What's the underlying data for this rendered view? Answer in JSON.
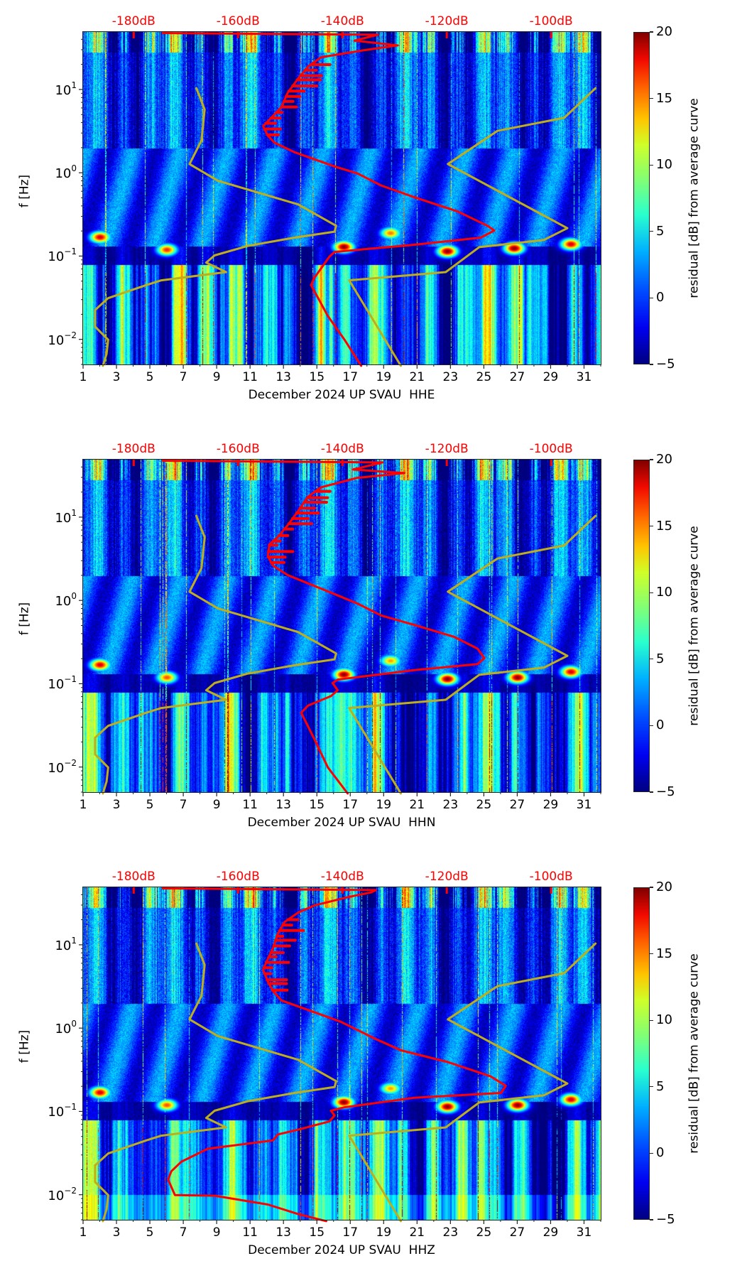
{
  "chart_data": [
    {
      "type": "heatmap",
      "channel": "HHE",
      "xlabel": "December 2024 UP SVAU  HHE",
      "ylabel": "f [Hz]",
      "x_ticks": [
        "1",
        "3",
        "5",
        "7",
        "9",
        "11",
        "13",
        "15",
        "17",
        "19",
        "21",
        "23",
        "25",
        "27",
        "29",
        "31"
      ],
      "xlim": [
        1,
        32
      ],
      "y_scale": "log",
      "ylim": [
        0.005,
        49
      ],
      "y_ticks": [
        {
          "base": "10",
          "exp": "1",
          "value": 10
        },
        {
          "base": "10",
          "exp": "0",
          "value": 1
        },
        {
          "base": "10",
          "exp": "−1",
          "value": 0.1
        },
        {
          "base": "10",
          "exp": "−2",
          "value": 0.01
        }
      ],
      "top_axis": {
        "labels": [
          "-180dB",
          "-160dB",
          "-140dB",
          "-120dB",
          "-100dB"
        ],
        "values": [
          -180,
          -160,
          -140,
          -120,
          -100
        ],
        "xlim": [
          -189.7,
          -90.5
        ]
      },
      "colorbar": {
        "label": "residual [dB] from average curve",
        "ticks": [
          "20",
          "15",
          "10",
          "5",
          "0",
          "−5"
        ],
        "tick_values": [
          20,
          15,
          10,
          5,
          0,
          -5
        ],
        "range": [
          -5,
          20
        ],
        "colormap": "jet"
      },
      "series": [
        {
          "name": "mean PSD",
          "color": "#ff0000",
          "db": [
            -174.4,
            -133.2,
            -137.7,
            -129.4,
            -135.8,
            -144.1,
            -146.6,
            -148.5,
            -150.5,
            -151.7,
            -154.3,
            -155.2,
            -154.3,
            -153.0,
            -149.2,
            -141.5,
            -137.1,
            -132.6,
            -126.2,
            -117.9,
            -112.2,
            -110.9,
            -113.5,
            -126.2,
            -141.5,
            -142.5,
            -145.4,
            -146.0,
            -142.8,
            -139.6,
            -136.4
          ],
          "log10_f": [
            1.677,
            1.657,
            1.586,
            1.529,
            1.472,
            1.387,
            1.273,
            1.13,
            0.959,
            0.788,
            0.617,
            0.56,
            0.446,
            0.361,
            0.247,
            0.076,
            -0.009,
            -0.152,
            -0.294,
            -0.465,
            -0.636,
            -0.693,
            -0.779,
            -0.864,
            -0.95,
            -1.007,
            -1.263,
            -1.348,
            -1.719,
            -2.004,
            -2.317
          ]
        },
        {
          "name": "low noise model",
          "color": "#bfae1c",
          "db": [
            -168.0,
            -166.4,
            -167.0,
            -169.3,
            -163.9,
            -148.5,
            -141.2,
            -141.5,
            -149.2,
            -158.1,
            -164.5,
            -166.1,
            -162.3,
            -174.7,
            -177.6,
            -184.9,
            -187.4,
            -187.4,
            -184.9,
            -185.2,
            -185.9
          ],
          "log10_f": [
            1.016,
            0.76,
            0.389,
            0.105,
            -0.095,
            -0.38,
            -0.636,
            -0.707,
            -0.779,
            -0.878,
            -0.992,
            -1.078,
            -1.192,
            -1.291,
            -1.348,
            -1.505,
            -1.648,
            -1.847,
            -2.004,
            -2.175,
            -2.317
          ]
        },
        {
          "name": "high noise model",
          "color": "#bfae1c",
          "db": [
            -91.5,
            -97.5,
            -110.3,
            -119.8,
            -96.9,
            -101.4,
            -113.8,
            -120.2,
            -138.7,
            -128.8
          ],
          "log10_f": [
            1.016,
            0.66,
            0.503,
            0.105,
            -0.665,
            -0.807,
            -0.893,
            -1.192,
            -1.291,
            -2.317
          ]
        }
      ],
      "heatmap_features": [
        {
          "day": 2.0,
          "f": 0.17,
          "residual": 18
        },
        {
          "day": 6.0,
          "f": 0.12,
          "residual": 16
        },
        {
          "day": 16.6,
          "f": 0.13,
          "residual": 20
        },
        {
          "day": 19.4,
          "f": 0.19,
          "residual": 14
        },
        {
          "day": 22.8,
          "f": 0.115,
          "residual": 20
        },
        {
          "day": 26.8,
          "f": 0.125,
          "residual": 20
        },
        {
          "day": 30.2,
          "f": 0.14,
          "residual": 18
        }
      ]
    },
    {
      "type": "heatmap",
      "channel": "HHN",
      "xlabel": "December 2024 UP SVAU  HHN",
      "ylabel": "f [Hz]",
      "x_ticks": [
        "1",
        "3",
        "5",
        "7",
        "9",
        "11",
        "13",
        "15",
        "17",
        "19",
        "21",
        "23",
        "25",
        "27",
        "29",
        "31"
      ],
      "xlim": [
        1,
        32
      ],
      "y_scale": "log",
      "ylim": [
        0.005,
        49
      ],
      "y_ticks": [
        {
          "base": "10",
          "exp": "1",
          "value": 10
        },
        {
          "base": "10",
          "exp": "0",
          "value": 1
        },
        {
          "base": "10",
          "exp": "−1",
          "value": 0.1
        },
        {
          "base": "10",
          "exp": "−2",
          "value": 0.01
        }
      ],
      "top_axis": {
        "labels": [
          "-180dB",
          "-160dB",
          "-140dB",
          "-120dB",
          "-100dB"
        ],
        "values": [
          -180,
          -160,
          -140,
          -120,
          -100
        ],
        "xlim": [
          -189.7,
          -90.5
        ]
      },
      "colorbar": {
        "label": "residual [dB] from average curve",
        "ticks": [
          "20",
          "15",
          "10",
          "5",
          "0",
          "−5"
        ],
        "tick_values": [
          20,
          15,
          10,
          5,
          0,
          -5
        ],
        "range": [
          -5,
          20
        ],
        "colormap": "jet"
      },
      "series": [
        {
          "name": "mean PSD",
          "color": "#ff0000",
          "db": [
            -174.4,
            -132.3,
            -138.0,
            -128.1,
            -137.1,
            -144.1,
            -146.6,
            -148.5,
            -150.5,
            -152.4,
            -154.0,
            -154.3,
            -153.3,
            -150.5,
            -141.5,
            -137.1,
            -132.6,
            -126.2,
            -118.6,
            -114.1,
            -112.8,
            -114.1,
            -126.2,
            -140.9,
            -141.9,
            -140.9,
            -142.2,
            -146.6,
            -147.9,
            -145.4,
            -142.8,
            -139.0
          ],
          "log10_f": [
            1.677,
            1.657,
            1.572,
            1.529,
            1.472,
            1.358,
            1.244,
            1.073,
            0.902,
            0.76,
            0.674,
            0.532,
            0.418,
            0.304,
            0.076,
            -0.038,
            -0.18,
            -0.294,
            -0.437,
            -0.579,
            -0.693,
            -0.764,
            -0.836,
            -0.95,
            -0.992,
            -1.078,
            -1.149,
            -1.263,
            -1.348,
            -1.662,
            -2.004,
            -2.317
          ]
        },
        {
          "name": "low noise model",
          "color": "#bfae1c",
          "db": [
            -168.0,
            -166.4,
            -167.0,
            -169.3,
            -163.9,
            -148.5,
            -141.2,
            -141.5,
            -149.2,
            -158.1,
            -164.5,
            -166.1,
            -162.3,
            -174.7,
            -177.6,
            -184.9,
            -187.4,
            -187.4,
            -184.9,
            -185.2,
            -185.9
          ],
          "log10_f": [
            1.016,
            0.76,
            0.389,
            0.105,
            -0.095,
            -0.38,
            -0.636,
            -0.707,
            -0.779,
            -0.878,
            -0.992,
            -1.078,
            -1.192,
            -1.291,
            -1.348,
            -1.505,
            -1.648,
            -1.847,
            -2.004,
            -2.175,
            -2.317
          ]
        },
        {
          "name": "high noise model",
          "color": "#bfae1c",
          "db": [
            -91.5,
            -97.5,
            -110.3,
            -119.8,
            -96.9,
            -101.4,
            -113.8,
            -120.2,
            -138.7,
            -128.8
          ],
          "log10_f": [
            1.016,
            0.66,
            0.503,
            0.105,
            -0.665,
            -0.807,
            -0.893,
            -1.192,
            -1.291,
            -2.317
          ]
        }
      ],
      "heatmap_features": [
        {
          "day": 2.0,
          "f": 0.17,
          "residual": 18
        },
        {
          "day": 6.0,
          "f": 0.12,
          "residual": 15
        },
        {
          "day": 16.6,
          "f": 0.13,
          "residual": 20
        },
        {
          "day": 19.4,
          "f": 0.19,
          "residual": 13
        },
        {
          "day": 22.8,
          "f": 0.115,
          "residual": 20
        },
        {
          "day": 27.0,
          "f": 0.12,
          "residual": 20
        },
        {
          "day": 30.2,
          "f": 0.14,
          "residual": 18
        }
      ]
    },
    {
      "type": "heatmap",
      "channel": "HHZ",
      "xlabel": "December 2024 UP SVAU  HHZ",
      "ylabel": "f [Hz]",
      "x_ticks": [
        "1",
        "3",
        "5",
        "7",
        "9",
        "11",
        "13",
        "15",
        "17",
        "19",
        "21",
        "23",
        "25",
        "27",
        "29",
        "31"
      ],
      "xlim": [
        1,
        32
      ],
      "y_scale": "log",
      "ylim": [
        0.005,
        49
      ],
      "y_ticks": [
        {
          "base": "10",
          "exp": "1",
          "value": 10
        },
        {
          "base": "10",
          "exp": "0",
          "value": 1
        },
        {
          "base": "10",
          "exp": "−1",
          "value": 0.1
        },
        {
          "base": "10",
          "exp": "−2",
          "value": 0.01
        }
      ],
      "top_axis": {
        "labels": [
          "-180dB",
          "-160dB",
          "-140dB",
          "-120dB",
          "-100dB"
        ],
        "values": [
          -180,
          -160,
          -140,
          -120,
          -100
        ],
        "xlim": [
          -189.7,
          -90.5
        ]
      },
      "colorbar": {
        "label": "residual [dB] from average curve",
        "ticks": [
          "20",
          "15",
          "10",
          "5",
          "0",
          "−5"
        ],
        "tick_values": [
          20,
          15,
          10,
          5,
          0,
          -5
        ],
        "range": [
          -5,
          20
        ],
        "colormap": "jet"
      },
      "series": [
        {
          "name": "mean PSD",
          "color": "#ff0000",
          "db": [
            -174.4,
            -133.6,
            -134.5,
            -139.0,
            -145.4,
            -148.5,
            -151.1,
            -152.4,
            -153.3,
            -154.6,
            -155.2,
            -154.3,
            -153.3,
            -151.7,
            -147.9,
            -140.3,
            -133.9,
            -128.8,
            -119.8,
            -111.6,
            -108.7,
            -109.6,
            -126.2,
            -139.6,
            -142.2,
            -141.5,
            -142.5,
            -148.5,
            -152.4,
            -153.3,
            -165.8,
            -170.9,
            -172.8,
            -173.4,
            -172.1,
            -164.5,
            -154.3,
            -148.5,
            -143.1
          ],
          "log10_f": [
            1.677,
            1.657,
            1.629,
            1.572,
            1.472,
            1.387,
            1.273,
            1.13,
            0.959,
            0.788,
            0.703,
            0.56,
            0.446,
            0.332,
            0.247,
            0.076,
            -0.123,
            -0.266,
            -0.408,
            -0.579,
            -0.693,
            -0.779,
            -0.836,
            -0.95,
            -0.992,
            -1.049,
            -1.121,
            -1.22,
            -1.277,
            -1.348,
            -1.448,
            -1.605,
            -1.719,
            -1.818,
            -2.004,
            -2.012,
            -2.118,
            -2.232,
            -2.317
          ]
        },
        {
          "name": "low noise model",
          "color": "#bfae1c",
          "db": [
            -168.0,
            -166.4,
            -167.0,
            -169.3,
            -163.9,
            -148.5,
            -141.2,
            -141.5,
            -149.2,
            -158.1,
            -164.5,
            -166.1,
            -162.3,
            -174.7,
            -177.6,
            -184.9,
            -187.4,
            -187.4,
            -184.9,
            -185.2,
            -185.9
          ],
          "log10_f": [
            1.016,
            0.76,
            0.389,
            0.105,
            -0.095,
            -0.38,
            -0.636,
            -0.707,
            -0.779,
            -0.878,
            -0.992,
            -1.078,
            -1.192,
            -1.291,
            -1.348,
            -1.505,
            -1.648,
            -1.847,
            -2.004,
            -2.175,
            -2.317
          ]
        },
        {
          "name": "high noise model",
          "color": "#bfae1c",
          "db": [
            -91.5,
            -97.5,
            -110.3,
            -119.8,
            -96.9,
            -101.4,
            -113.8,
            -120.2,
            -138.7,
            -128.8
          ],
          "log10_f": [
            1.016,
            0.66,
            0.503,
            0.105,
            -0.665,
            -0.807,
            -0.893,
            -1.192,
            -1.291,
            -2.317
          ]
        }
      ],
      "heatmap_features": [
        {
          "day": 2.0,
          "f": 0.17,
          "residual": 18
        },
        {
          "day": 6.0,
          "f": 0.12,
          "residual": 15
        },
        {
          "day": 16.6,
          "f": 0.13,
          "residual": 20
        },
        {
          "day": 19.4,
          "f": 0.19,
          "residual": 13
        },
        {
          "day": 22.8,
          "f": 0.115,
          "residual": 20
        },
        {
          "day": 27.0,
          "f": 0.12,
          "residual": 20
        },
        {
          "day": 30.2,
          "f": 0.14,
          "residual": 18
        }
      ]
    }
  ]
}
